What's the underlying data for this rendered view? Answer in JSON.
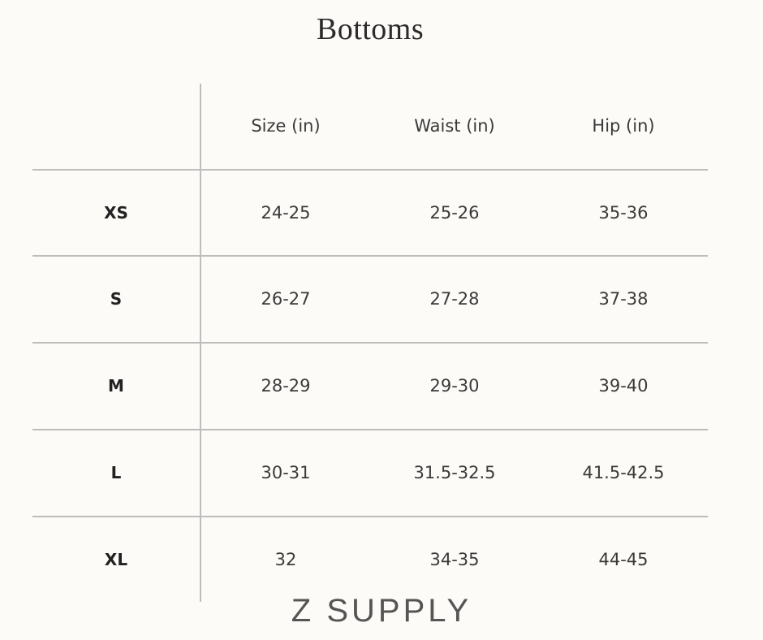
{
  "title": "Bottoms",
  "table": {
    "headers": [
      "",
      "Size (in)",
      "Waist (in)",
      "Hip (in)"
    ],
    "rows": [
      {
        "label": "XS",
        "size": "24-25",
        "waist": "25-26",
        "hip": "35-36"
      },
      {
        "label": "S",
        "size": "26-27",
        "waist": "27-28",
        "hip": "37-38"
      },
      {
        "label": "M",
        "size": "28-29",
        "waist": "29-30",
        "hip": "39-40"
      },
      {
        "label": "L",
        "size": "30-31",
        "waist": "31.5-32.5",
        "hip": "41.5-42.5"
      },
      {
        "label": "XL",
        "size": "32",
        "waist": "34-35",
        "hip": "44-45"
      }
    ]
  },
  "brand": "Z SUPPLY",
  "colors": {
    "background": "#fcfbf8",
    "lines": "#bdbdbd",
    "text": "#333333"
  }
}
